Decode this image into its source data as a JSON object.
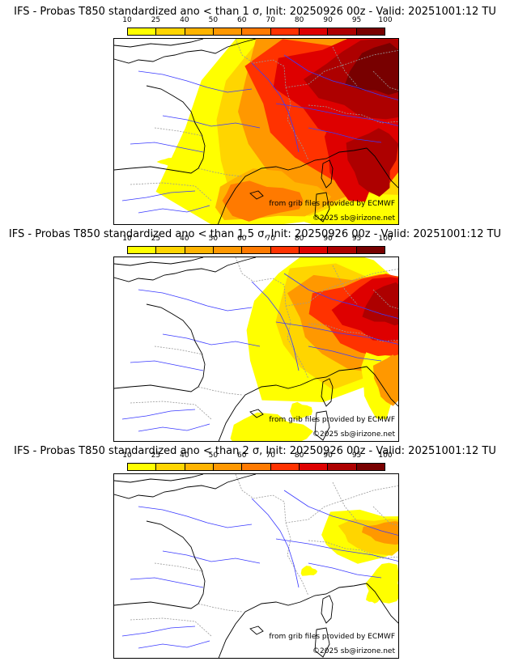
{
  "panels": [
    {
      "title": "IFS - Probas T850  standardized ano < than 1 σ, Init: 20250926 00z - Valid: 20251001:12 TU",
      "intensity": "high",
      "credit_source": "from grib files provided by ECMWF",
      "credit_copyright": "©2025 sb@irizone.net"
    },
    {
      "title": "IFS - Probas T850  standardized ano < than 1.5 σ, Init: 20250926 00z - Valid: 20251001:12 TU",
      "intensity": "medium",
      "credit_source": "from grib files provided by ECMWF",
      "credit_copyright": "©2025 sb@irizone.net"
    },
    {
      "title": "IFS - Probas T850  standardized ano < than 2 σ, Init: 20250926 00z - Valid: 20251001:12 TU",
      "intensity": "low",
      "credit_source": "from grib files provided by ECMWF",
      "credit_copyright": "©2025 sb@irizone.net"
    }
  ],
  "legend": {
    "ticks": [
      "10",
      "25",
      "40",
      "50",
      "60",
      "70",
      "80",
      "90",
      "95",
      "100"
    ],
    "colors": [
      "#ffff00",
      "#ffd500",
      "#ffb400",
      "#ff9800",
      "#ff7a00",
      "#ff3200",
      "#de0000",
      "#ad0000",
      "#780000"
    ]
  },
  "colors": {
    "coast": "#000000",
    "rivers": "#3a3aff",
    "borders": "#999999"
  }
}
